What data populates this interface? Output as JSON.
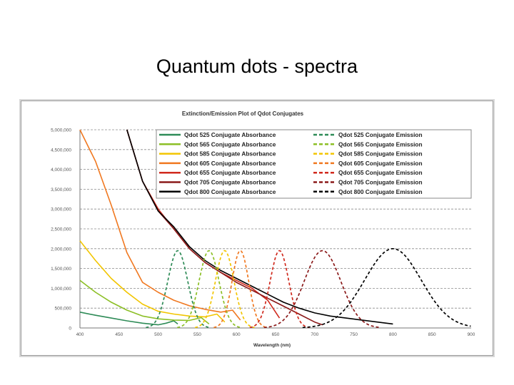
{
  "slide": {
    "title": "Quantum dots - spectra"
  },
  "chart_data": {
    "type": "line",
    "title": "Extinction/Emission Plot of Qdot Conjugates",
    "xlabel": "Wavelength (nm)",
    "ylabel": "",
    "xlim": [
      400,
      900
    ],
    "ylim": [
      0,
      5000000
    ],
    "x_ticks": [
      400,
      450,
      500,
      550,
      600,
      650,
      700,
      750,
      800,
      850,
      900
    ],
    "x_tick_labels": [
      "400",
      "450",
      "500",
      "550",
      "600",
      "650",
      "700",
      "750",
      "800",
      "850",
      "900"
    ],
    "y_ticks": [
      0,
      500000,
      1000000,
      1500000,
      2000000,
      2500000,
      3000000,
      3500000,
      4000000,
      4500000,
      5000000
    ],
    "y_tick_labels": [
      "0",
      "500,000",
      "1,000,000",
      "1,500,000",
      "2,000,000",
      "2,500,000",
      "3,000,000",
      "3,500,000",
      "4,000,000",
      "4,500,000",
      "5,000,000"
    ],
    "grid": "horizontal dashed",
    "legend_position": "top",
    "series": [
      {
        "name": "Qdot 525 Conjugate Absorbance",
        "color": "#2e8b57",
        "style": "solid",
        "x": [
          400,
          420,
          440,
          460,
          480,
          500,
          510,
          520,
          525
        ],
        "y": [
          400000,
          320000,
          250000,
          180000,
          120000,
          80000,
          120000,
          180000,
          100000
        ]
      },
      {
        "name": "Qdot 565 Conjugate Absorbance",
        "color": "#8cbf26",
        "style": "solid",
        "x": [
          400,
          420,
          440,
          460,
          480,
          500,
          520,
          540,
          555,
          565
        ],
        "y": [
          1200000,
          900000,
          650000,
          450000,
          300000,
          230000,
          200000,
          190000,
          260000,
          100000
        ]
      },
      {
        "name": "Qdot 585 Conjugate Absorbance",
        "color": "#f2c500",
        "style": "solid",
        "x": [
          400,
          420,
          440,
          460,
          480,
          500,
          520,
          540,
          560,
          575,
          585
        ],
        "y": [
          2200000,
          1700000,
          1250000,
          900000,
          600000,
          420000,
          350000,
          300000,
          280000,
          350000,
          150000
        ]
      },
      {
        "name": "Qdot 605 Conjugate Absorbance",
        "color": "#f07820",
        "style": "solid",
        "x": [
          400,
          420,
          440,
          460,
          480,
          500,
          520,
          540,
          560,
          580,
          595,
          605
        ],
        "y": [
          5000000,
          4200000,
          3100000,
          1900000,
          1150000,
          900000,
          700000,
          560000,
          470000,
          400000,
          450000,
          200000
        ]
      },
      {
        "name": "Qdot 655 Conjugate Absorbance",
        "color": "#d02a1e",
        "style": "solid",
        "x": [
          460,
          480,
          500,
          520,
          540,
          560,
          580,
          600,
          620,
          640,
          655
        ],
        "y": [
          5000000,
          3700000,
          3000000,
          2500000,
          2000000,
          1650000,
          1400000,
          1200000,
          1000000,
          700000,
          250000
        ]
      },
      {
        "name": "Qdot 705 Conjugate Absorbance",
        "color": "#8b1a1a",
        "style": "solid",
        "x": [
          460,
          480,
          500,
          520,
          540,
          560,
          580,
          600,
          620,
          640,
          660,
          680,
          700,
          710
        ],
        "y": [
          5000000,
          3700000,
          2950000,
          2500000,
          2000000,
          1650000,
          1400000,
          1150000,
          950000,
          750000,
          550000,
          350000,
          150000,
          80000
        ]
      },
      {
        "name": "Qdot 800 Conjugate Absorbance",
        "color": "#000000",
        "style": "solid",
        "x": [
          460,
          480,
          500,
          520,
          540,
          560,
          580,
          600,
          620,
          640,
          660,
          680,
          700,
          720,
          740,
          760,
          780,
          800
        ],
        "y": [
          5000000,
          3700000,
          2950000,
          2550000,
          2050000,
          1700000,
          1450000,
          1250000,
          1050000,
          850000,
          650000,
          500000,
          380000,
          300000,
          250000,
          200000,
          150000,
          100000
        ]
      },
      {
        "name": "Qdot 525 Conjugate Emission",
        "color": "#2e8b57",
        "style": "dashed",
        "peak": 525,
        "amplitude": 1950000,
        "fwhm": 30
      },
      {
        "name": "Qdot 565 Conjugate Emission",
        "color": "#8cbf26",
        "style": "dashed",
        "peak": 565,
        "amplitude": 1950000,
        "fwhm": 30
      },
      {
        "name": "Qdot 585 Conjugate Emission",
        "color": "#f2c500",
        "style": "dashed",
        "peak": 585,
        "amplitude": 1950000,
        "fwhm": 28
      },
      {
        "name": "Qdot 605 Conjugate Emission",
        "color": "#f07820",
        "style": "dashed",
        "peak": 605,
        "amplitude": 1950000,
        "fwhm": 25
      },
      {
        "name": "Qdot 655 Conjugate Emission",
        "color": "#d02a1e",
        "style": "dashed",
        "peak": 655,
        "amplitude": 1950000,
        "fwhm": 28
      },
      {
        "name": "Qdot 705 Conjugate Emission",
        "color": "#8b1a1a",
        "style": "dashed",
        "peak": 710,
        "amplitude": 1950000,
        "fwhm": 55
      },
      {
        "name": "Qdot 800 Conjugate Emission",
        "color": "#000000",
        "style": "dashed",
        "peak": 800,
        "amplitude": 2000000,
        "fwhm": 85
      }
    ]
  }
}
